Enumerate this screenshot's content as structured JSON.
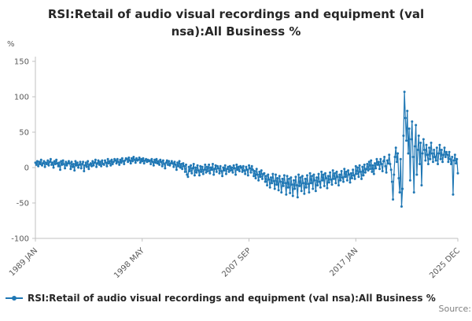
{
  "title": "RSI:Retail of audio visual recordings and equipment (val nsa):All Business %",
  "y_axis_unit": "%",
  "legend_label": "RSI:Retail of audio visual recordings and equipment (val nsa):All Business %",
  "source_label": "Source:",
  "colors": {
    "line": "#1f77b4",
    "axis": "#c0c0c0",
    "tick_text": "#595959",
    "title_text": "#262626"
  },
  "chart_data": {
    "type": "line",
    "title": "RSI:Retail of audio visual recordings and equipment (val nsa):All Business %",
    "xlabel": "",
    "ylabel": "%",
    "x_start": "1989-01",
    "frequency": "monthly",
    "ylim": [
      -100,
      150
    ],
    "y_ticks": [
      150,
      100,
      50,
      0,
      -50,
      -100
    ],
    "x_ticks": [
      {
        "label": "1989 JAN",
        "month_index": 0
      },
      {
        "label": "1998 MAY",
        "month_index": 112
      },
      {
        "label": "2007 SEP",
        "month_index": 224
      },
      {
        "label": "2017 JAN",
        "month_index": 336
      },
      {
        "label": "2025 DEC",
        "month_index": 443
      }
    ],
    "legend_position": "bottom-left",
    "grid": false,
    "series": [
      {
        "name": "RSI:Retail of audio visual recordings and equipment (val nsa):All Business %",
        "values": [
          7,
          4,
          9,
          2,
          8,
          5,
          11,
          3,
          6,
          9,
          1,
          7,
          5,
          10,
          3,
          8,
          12,
          4,
          7,
          0,
          9,
          5,
          11,
          6,
          2,
          7,
          -3,
          9,
          4,
          10,
          5,
          -1,
          8,
          3,
          6,
          9,
          6,
          -2,
          8,
          1,
          5,
          -4,
          9,
          3,
          7,
          0,
          4,
          8,
          -1,
          5,
          8,
          -5,
          3,
          7,
          1,
          9,
          -2,
          4,
          6,
          2,
          9,
          3,
          7,
          11,
          1,
          6,
          10,
          4,
          8,
          2,
          10,
          5,
          4,
          10,
          7,
          2,
          12,
          6,
          9,
          3,
          11,
          5,
          8,
          12,
          10,
          6,
          12,
          8,
          4,
          11,
          7,
          13,
          9,
          5,
          10,
          13,
          12,
          8,
          14,
          10,
          6,
          13,
          9,
          15,
          11,
          7,
          13,
          10,
          11,
          14,
          7,
          12,
          9,
          13,
          6,
          10,
          12,
          8,
          11,
          9,
          10,
          5,
          12,
          8,
          3,
          11,
          7,
          12,
          6,
          9,
          4,
          11,
          8,
          2,
          10,
          5,
          -1,
          7,
          10,
          4,
          9,
          3,
          6,
          9,
          6,
          1,
          8,
          4,
          -3,
          7,
          2,
          9,
          0,
          5,
          -2,
          6,
          2,
          -6,
          4,
          -10,
          -13,
          1,
          -5,
          3,
          -8,
          -1,
          5,
          -11,
          0,
          -7,
          3,
          -4,
          -11,
          2,
          -6,
          1,
          -9,
          -3,
          4,
          -7,
          1,
          -5,
          4,
          -8,
          0,
          -3,
          5,
          -10,
          -2,
          3,
          -6,
          2,
          -1,
          -8,
          2,
          -5,
          -12,
          0,
          -4,
          3,
          -9,
          -2,
          1,
          -6,
          2,
          -4,
          0,
          -7,
          3,
          -1,
          -10,
          4,
          -3,
          1,
          -5,
          2,
          0,
          -6,
          2,
          -4,
          -9,
          1,
          -3,
          -11,
          3,
          -1,
          -7,
          2,
          -3,
          -12,
          -5,
          -15,
          -2,
          -10,
          -18,
          -6,
          -13,
          -4,
          -16,
          -9,
          -8,
          -20,
          -12,
          -25,
          -10,
          -17,
          -28,
          -14,
          -22,
          -9,
          -19,
          -30,
          -10,
          -24,
          -15,
          -32,
          -12,
          -20,
          -35,
          -16,
          -26,
          -11,
          -22,
          -38,
          -12,
          -28,
          -16,
          -36,
          -14,
          -24,
          -40,
          -18,
          -30,
          -13,
          -25,
          -42,
          -10,
          -26,
          -14,
          -33,
          -12,
          -22,
          -37,
          -16,
          -28,
          -11,
          -23,
          -35,
          -8,
          -22,
          -12,
          -30,
          -10,
          -18,
          -33,
          -14,
          -25,
          -9,
          -20,
          -28,
          -6,
          -18,
          -10,
          -26,
          -8,
          -15,
          -29,
          -12,
          -21,
          -7,
          -17,
          -24,
          -4,
          -16,
          -8,
          -22,
          -6,
          -13,
          -25,
          -10,
          -18,
          -5,
          -14,
          -20,
          -2,
          -13,
          -6,
          -18,
          -4,
          -10,
          -21,
          -8,
          -15,
          -3,
          -11,
          -16,
          2,
          -9,
          0,
          -13,
          3,
          -6,
          -16,
          1,
          -11,
          4,
          -7,
          -2,
          5,
          -4,
          8,
          -2,
          10,
          -6,
          3,
          -9,
          6,
          -1,
          12,
          4,
          8,
          -2,
          12,
          5,
          -5,
          9,
          15,
          2,
          -7,
          10,
          6,
          18,
          5,
          -3,
          -20,
          -45,
          -10,
          15,
          28,
          8,
          20,
          -15,
          -35,
          12,
          -55,
          -30,
          45,
          107,
          70,
          38,
          80,
          20,
          55,
          -18,
          40,
          65,
          15,
          -35,
          30,
          60,
          -10,
          25,
          45,
          5,
          35,
          -25,
          20,
          40,
          25,
          10,
          32,
          18,
          5,
          28,
          12,
          35,
          20,
          8,
          25,
          15,
          10,
          28,
          5,
          20,
          32,
          12,
          25,
          8,
          18,
          28,
          15,
          22,
          18,
          8,
          22,
          12,
          5,
          15,
          -38,
          10,
          18,
          6,
          12,
          -8
        ]
      }
    ]
  }
}
